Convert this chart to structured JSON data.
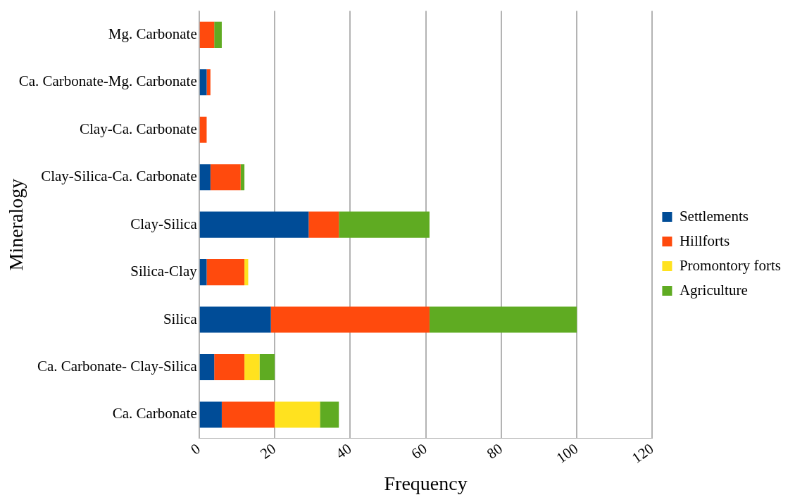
{
  "chart_data": {
    "type": "bar",
    "orientation": "horizontal",
    "stacked": true,
    "xlabel": "Frequency",
    "ylabel": "Mineralogy",
    "categories": [
      "Mg. Carbonate",
      "Ca. Carbonate-Mg. Carbonate",
      "Clay-Ca. Carbonate",
      "Clay-Silica-Ca. Carbonate",
      "Clay-Silica",
      "Silica-Clay",
      "Silica",
      "Ca. Carbonate- Clay-Silica",
      "Ca. Carbonate"
    ],
    "series": [
      {
        "name": "Settlements",
        "color": "#004c97",
        "values": [
          0,
          2,
          0,
          3,
          29,
          2,
          19,
          4,
          6
        ]
      },
      {
        "name": "Hillforts",
        "color": "#ff4a0d",
        "values": [
          4,
          1,
          2,
          8,
          8,
          10,
          42,
          8,
          14
        ]
      },
      {
        "name": "Promontory forts",
        "color": "#ffe21f",
        "values": [
          0,
          0,
          0,
          0,
          0,
          1,
          0,
          4,
          12
        ]
      },
      {
        "name": "Agriculture",
        "color": "#5fab22",
        "values": [
          2,
          0,
          0,
          1,
          24,
          0,
          39,
          4,
          5
        ]
      }
    ],
    "xlim": [
      0,
      120
    ],
    "xticks": [
      0,
      20,
      40,
      60,
      80,
      100,
      120
    ],
    "grid": "x",
    "legend": "right"
  }
}
